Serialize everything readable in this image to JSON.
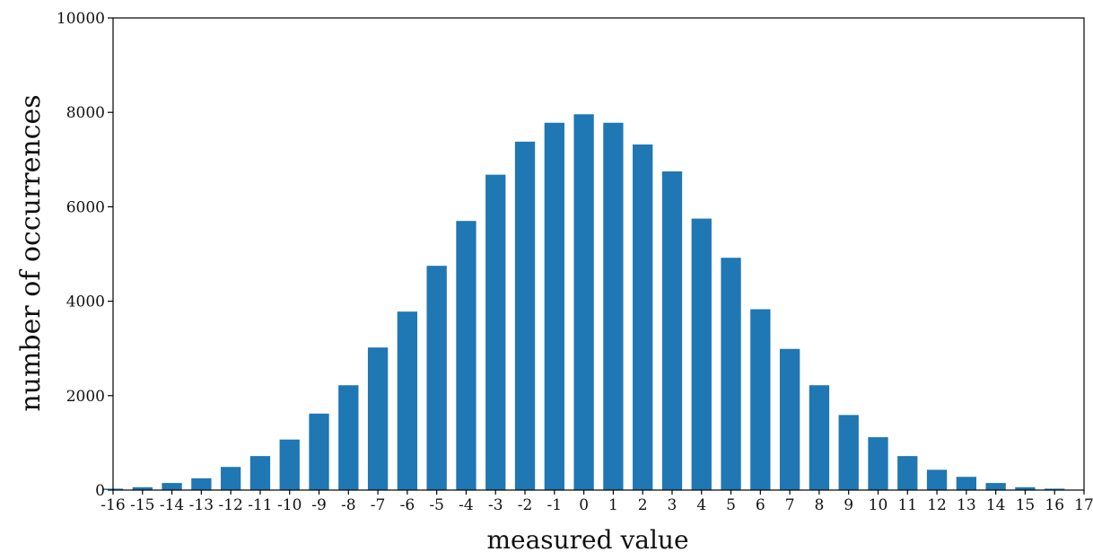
{
  "chart_data": {
    "type": "bar",
    "xlabel": "measured value",
    "ylabel": "number of occurrences",
    "categories": [
      -16,
      -15,
      -14,
      -13,
      -12,
      -11,
      -10,
      -9,
      -8,
      -7,
      -6,
      -5,
      -4,
      -3,
      -2,
      -1,
      0,
      1,
      2,
      3,
      4,
      5,
      6,
      7,
      8,
      9,
      10,
      11,
      12,
      13,
      14,
      15,
      16
    ],
    "values": [
      30,
      60,
      150,
      250,
      490,
      720,
      1070,
      1620,
      2220,
      3020,
      3780,
      4750,
      5700,
      6680,
      7380,
      7780,
      7960,
      7780,
      7320,
      6750,
      5750,
      4920,
      3830,
      2990,
      2220,
      1590,
      1120,
      720,
      430,
      280,
      150,
      60,
      30
    ],
    "xlim": [
      -16,
      17
    ],
    "ylim": [
      0,
      10000
    ],
    "xticks": [
      -16,
      -15,
      -14,
      -13,
      -12,
      -11,
      -10,
      -9,
      -8,
      -7,
      -6,
      -5,
      -4,
      -3,
      -2,
      -1,
      0,
      1,
      2,
      3,
      4,
      5,
      6,
      7,
      8,
      9,
      10,
      11,
      12,
      13,
      14,
      15,
      16,
      17
    ],
    "yticks": [
      0,
      2000,
      4000,
      6000,
      8000,
      10000
    ],
    "bar_color": "#1f77b4",
    "grid": false,
    "legend": "none"
  }
}
